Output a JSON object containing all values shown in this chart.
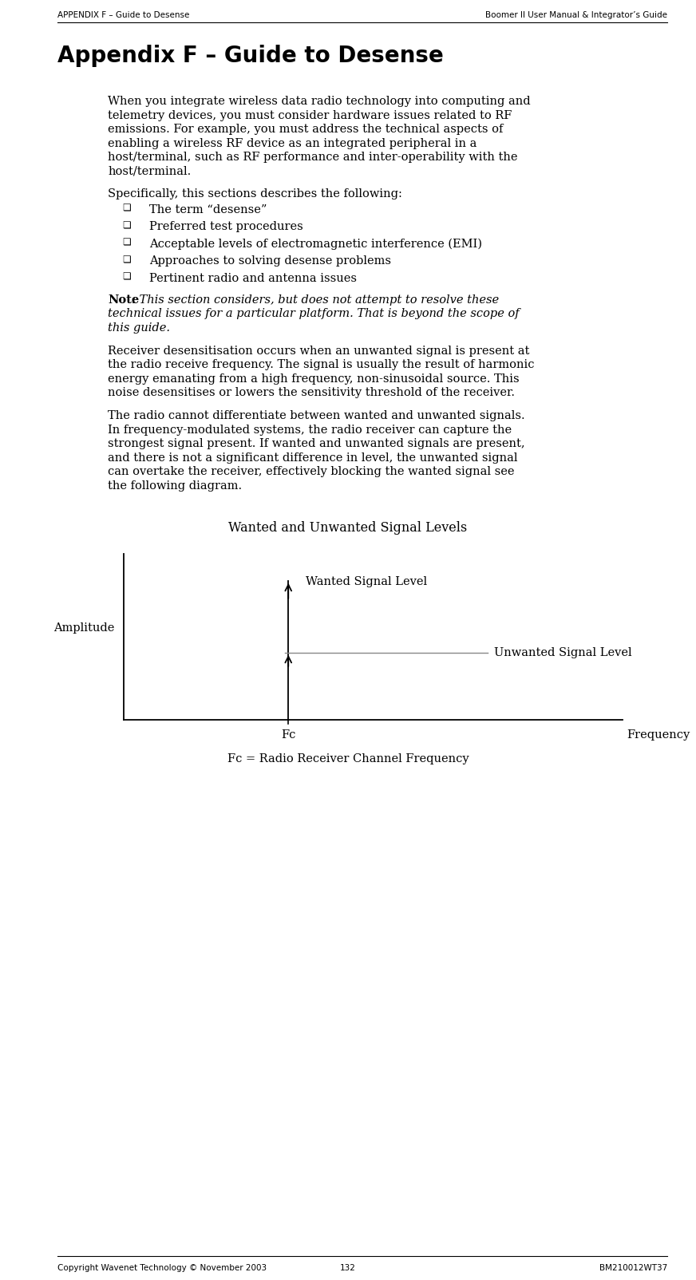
{
  "header_left": "APPENDIX F – Guide to Desense",
  "header_right": "Boomer II User Manual & Integrator’s Guide",
  "title": "Appendix F – Guide to Desense",
  "body_para1_lines": [
    "When you integrate wireless data radio technology into computing and",
    "telemetry devices, you must consider hardware issues related to RF",
    "emissions. For example, you must address the technical aspects of",
    "enabling a wireless RF device as an integrated peripheral in a",
    "host/terminal, such as RF performance and inter-operability with the",
    "host/terminal."
  ],
  "body_para2": "Specifically, this sections describes the following:",
  "bullets": [
    "The term “desense”",
    "Preferred test procedures",
    "Acceptable levels of electromagnetic interference (EMI)",
    "Approaches to solving desense problems",
    "Pertinent radio and antenna issues"
  ],
  "note_bold": "Note",
  "note_italic_lines": [
    ": This section considers, but does not attempt to resolve these",
    "technical issues for a particular platform. That is beyond the scope of",
    "this guide."
  ],
  "body_para3_lines": [
    "Receiver desensitisation occurs when an unwanted signal is present at",
    "the radio receive frequency. The signal is usually the result of harmonic",
    "energy emanating from a high frequency, non-sinusoidal source. This",
    "noise desensitises or lowers the sensitivity threshold of the receiver."
  ],
  "body_para4_lines": [
    "The radio cannot differentiate between wanted and unwanted signals.",
    "In frequency-modulated systems, the radio receiver can capture the",
    "strongest signal present. If wanted and unwanted signals are present,",
    "and there is not a significant difference in level, the unwanted signal",
    "can overtake the receiver, effectively blocking the wanted signal see",
    "the following diagram."
  ],
  "diagram_title": "Wanted and Unwanted Signal Levels",
  "amplitude_label": "Amplitude",
  "frequency_label": "Frequency",
  "fc_label": "Fc",
  "fc_desc": "Fc = Radio Receiver Channel Frequency",
  "wanted_label": "Wanted Signal Level",
  "unwanted_label": "Unwanted Signal Level",
  "footer_left": "Copyright Wavenet Technology © November 2003",
  "footer_page": "132",
  "footer_right": "BM210012WT37",
  "bg_color": "#ffffff",
  "text_color": "#000000",
  "page_width": 8.72,
  "page_height": 16.04,
  "dpi": 100
}
